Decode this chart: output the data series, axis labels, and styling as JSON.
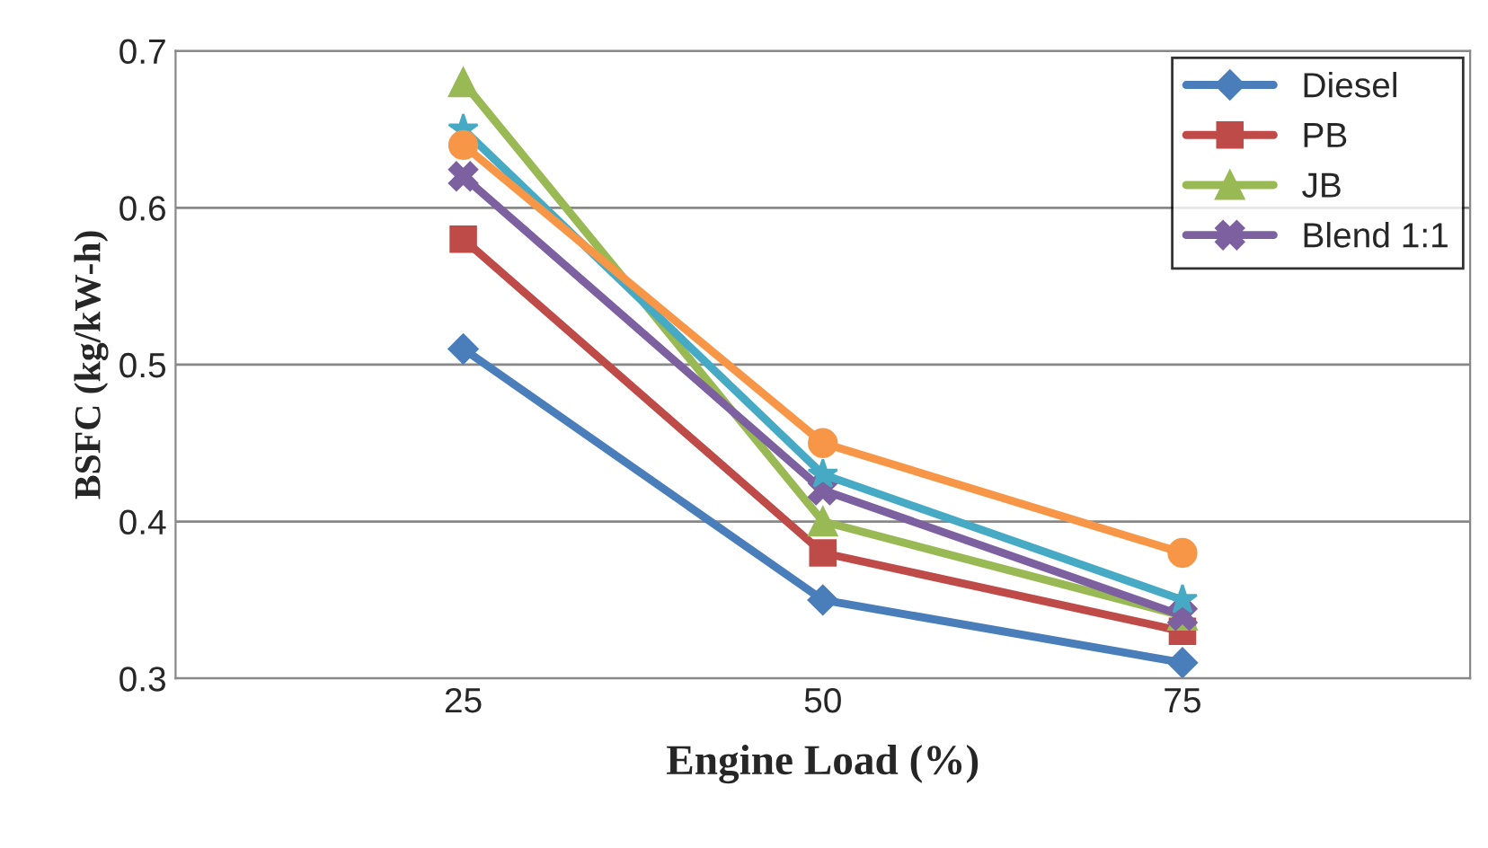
{
  "chart_data": {
    "type": "line",
    "xlabel": "Engine Load (%)",
    "ylabel": "BSFC (kg/kW-h)",
    "categories": [
      "25",
      "50",
      "75"
    ],
    "series": [
      {
        "name": "Diesel",
        "color": "#4a7ebb",
        "marker": "diamond",
        "values": [
          0.51,
          0.35,
          0.31
        ]
      },
      {
        "name": "PB",
        "color": "#be4b48",
        "marker": "square",
        "values": [
          0.58,
          0.38,
          0.33
        ]
      },
      {
        "name": "JB",
        "color": "#98b954",
        "marker": "triangle",
        "values": [
          0.68,
          0.4,
          0.34
        ]
      },
      {
        "name": "Blend 1:1",
        "color": "#7d60a0",
        "marker": "cross",
        "values": [
          0.62,
          0.42,
          0.34
        ]
      },
      {
        "color": "#46aac5",
        "marker": "star",
        "values": [
          0.65,
          0.43,
          0.35
        ]
      },
      {
        "color": "#f79646",
        "marker": "circle",
        "values": [
          0.64,
          0.45,
          0.38
        ]
      }
    ],
    "ylim": [
      0.3,
      0.7
    ],
    "yticks": [
      0.3,
      0.4,
      0.5,
      0.6,
      0.7
    ],
    "grid": "y",
    "legend": "top right"
  }
}
